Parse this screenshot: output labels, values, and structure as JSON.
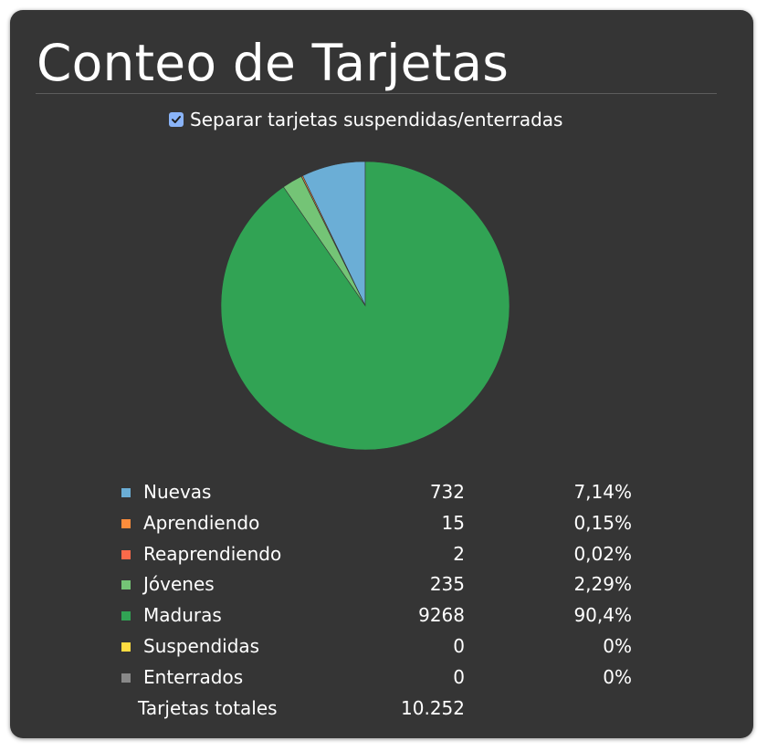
{
  "title": "Conteo de Tarjetas",
  "toggle": {
    "label": "Separar tarjetas suspendidas/enterradas",
    "checked": true,
    "accent": "#8ab4f8"
  },
  "chart_data": {
    "type": "pie",
    "series": [
      {
        "name": "Nuevas",
        "count": "732",
        "percent": "7,14%",
        "value": 732,
        "color": "#6baed6"
      },
      {
        "name": "Aprendiendo",
        "count": "15",
        "percent": "0,15%",
        "value": 15,
        "color": "#fd8d3c"
      },
      {
        "name": "Reaprendiendo",
        "count": "2",
        "percent": "0,02%",
        "value": 2,
        "color": "#fb6a4a"
      },
      {
        "name": "Jóvenes",
        "count": "235",
        "percent": "2,29%",
        "value": 235,
        "color": "#74c476"
      },
      {
        "name": "Maduras",
        "count": "9268",
        "percent": "90,4%",
        "value": 9268,
        "color": "#31a354"
      },
      {
        "name": "Suspendidas",
        "count": "0",
        "percent": "0%",
        "value": 0,
        "color": "#ffdc41"
      },
      {
        "name": "Enterrados",
        "count": "0",
        "percent": "0%",
        "value": 0,
        "color": "#888888"
      }
    ],
    "total_label": "Tarjetas totales",
    "total": "10.252"
  }
}
